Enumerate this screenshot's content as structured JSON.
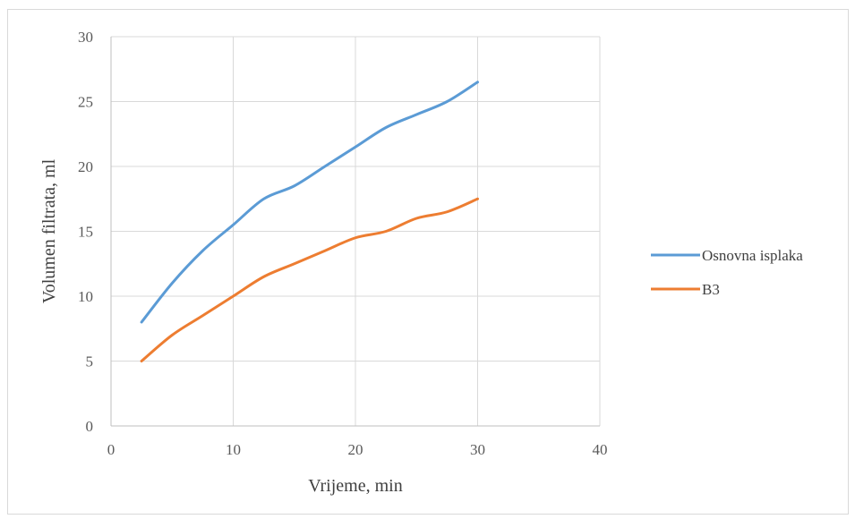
{
  "chart_data": {
    "type": "line",
    "title": "",
    "xlabel": "Vrijeme, min",
    "ylabel": "Volumen filtrata, ml",
    "xlim": [
      0,
      40
    ],
    "ylim": [
      0,
      30
    ],
    "x_ticks": [
      0,
      10,
      20,
      30,
      40
    ],
    "y_ticks": [
      0,
      5,
      10,
      15,
      20,
      25,
      30
    ],
    "grid": true,
    "legend_position": "right",
    "series": [
      {
        "name": "Osnovna isplaka",
        "color": "#5b9bd5",
        "points": [
          [
            2.5,
            8
          ],
          [
            5,
            11
          ],
          [
            7.5,
            13.5
          ],
          [
            10,
            15.5
          ],
          [
            12.5,
            17.5
          ],
          [
            15,
            18.5
          ],
          [
            17.5,
            20
          ],
          [
            20,
            21.5
          ],
          [
            22.5,
            23
          ],
          [
            25,
            24
          ],
          [
            27.5,
            25
          ],
          [
            30,
            26.5
          ]
        ]
      },
      {
        "name": "B3",
        "color": "#ed7d31",
        "points": [
          [
            2.5,
            5
          ],
          [
            5,
            7
          ],
          [
            7.5,
            8.5
          ],
          [
            10,
            10
          ],
          [
            12.5,
            11.5
          ],
          [
            15,
            12.5
          ],
          [
            17.5,
            13.5
          ],
          [
            20,
            14.5
          ],
          [
            22.5,
            15
          ],
          [
            25,
            16
          ],
          [
            27.5,
            16.5
          ],
          [
            30,
            17.5
          ]
        ]
      }
    ]
  }
}
